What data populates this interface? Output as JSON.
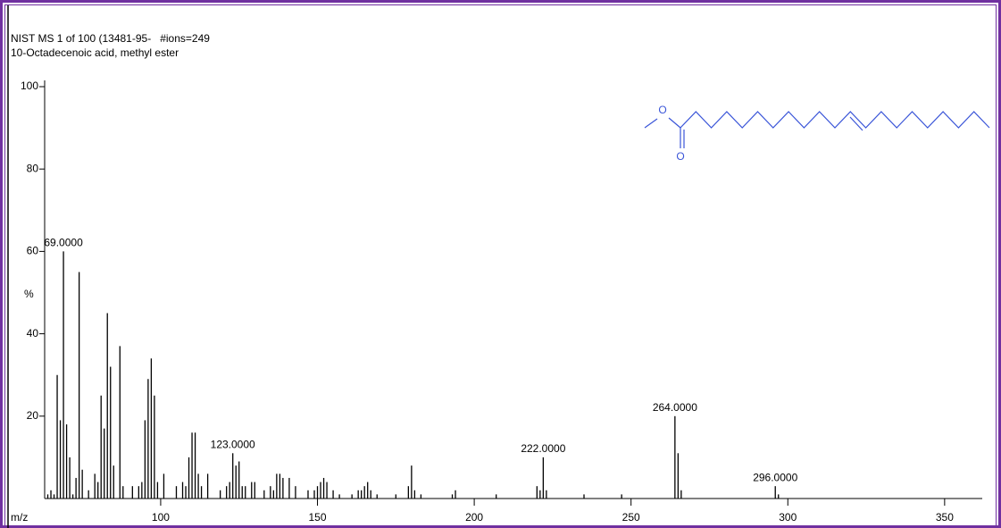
{
  "chart_data": {
    "type": "bar",
    "title": "NIST MS 1 of 100 (13481-95-   #ions=249",
    "subtitle": "10-Octadecenoic acid, methyl ester",
    "x_label": "m/z",
    "y_label": "%",
    "x": [
      64,
      65,
      66,
      67,
      68,
      69,
      70,
      71,
      72,
      73,
      74,
      75,
      77,
      79,
      80,
      81,
      82,
      83,
      84,
      85,
      87,
      88,
      91,
      93,
      94,
      95,
      96,
      97,
      98,
      99,
      101,
      105,
      107,
      108,
      109,
      110,
      111,
      112,
      113,
      115,
      119,
      121,
      122,
      123,
      124,
      125,
      126,
      127,
      129,
      130,
      133,
      135,
      136,
      137,
      138,
      139,
      141,
      143,
      147,
      149,
      150,
      151,
      152,
      153,
      155,
      157,
      161,
      163,
      164,
      165,
      166,
      167,
      169,
      175,
      179,
      180,
      181,
      183,
      193,
      194,
      207,
      220,
      221,
      222,
      223,
      235,
      247,
      264,
      265,
      266,
      296,
      297
    ],
    "values": [
      1,
      2,
      1,
      30,
      19,
      60,
      18,
      10,
      1,
      5,
      55,
      7,
      2,
      6,
      4,
      25,
      17,
      45,
      32,
      8,
      37,
      3,
      3,
      3,
      4,
      19,
      29,
      34,
      25,
      4,
      6,
      3,
      4,
      3,
      10,
      16,
      16,
      6,
      3,
      6,
      2,
      3,
      4,
      11,
      8,
      9,
      3,
      3,
      4,
      4,
      2,
      3,
      2,
      6,
      6,
      5,
      5,
      3,
      2,
      2,
      3,
      4,
      5,
      4,
      2,
      1,
      1,
      2,
      2,
      3,
      4,
      2,
      1,
      1,
      3,
      8,
      2,
      1,
      1,
      2,
      1,
      3,
      2,
      10,
      2,
      1,
      1,
      20,
      11,
      2,
      3,
      1
    ],
    "color": "#000000",
    "annotations": [
      {
        "value": 69,
        "label": "69.0000"
      },
      {
        "value": 123,
        "label": "123.0000"
      },
      {
        "value": 222,
        "label": "222.0000"
      },
      {
        "value": 264,
        "label": "264.0000"
      },
      {
        "value": 296,
        "label": "296.0000"
      }
    ],
    "xlim": [
      63,
      362
    ],
    "ylim": [
      0,
      100
    ],
    "xticks": [
      100,
      150,
      200,
      250,
      300,
      350
    ],
    "yticks": [
      20,
      40,
      60,
      80,
      100
    ],
    "structure": {
      "atoms": [
        "O",
        "O"
      ]
    }
  }
}
